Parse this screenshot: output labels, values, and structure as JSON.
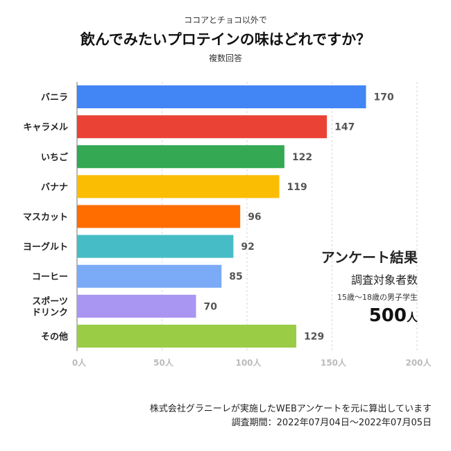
{
  "header": {
    "pre_title": "ココアとチョコ以外で",
    "title": "飲んでみたいプロテインの味はどれですか？",
    "subtitle": "複数回答"
  },
  "chart_data": {
    "type": "bar",
    "orientation": "horizontal",
    "categories": [
      "バニラ",
      "キャラメル",
      "いちご",
      "バナナ",
      "マスカット",
      "ヨーグルト",
      "コーヒー",
      "スポーツドリンク",
      "その他"
    ],
    "category_lines": [
      [
        "バニラ"
      ],
      [
        "キャラメル"
      ],
      [
        "いちご"
      ],
      [
        "バナナ"
      ],
      [
        "マスカット"
      ],
      [
        "ヨーグルト"
      ],
      [
        "コーヒー"
      ],
      [
        "スポーツ",
        "ドリンク"
      ],
      [
        "その他"
      ]
    ],
    "values": [
      170,
      147,
      122,
      119,
      96,
      92,
      85,
      70,
      129
    ],
    "colors": [
      "#4285f4",
      "#ea4335",
      "#34a853",
      "#fbbc04",
      "#ff6d01",
      "#46bdc6",
      "#7baaf7",
      "#a995f2",
      "#9bcc46"
    ],
    "xlim": [
      0,
      200
    ],
    "xticks": [
      0,
      50,
      100,
      150,
      200
    ],
    "xtick_labels": [
      "0人",
      "50人",
      "100人",
      "150人",
      "200人"
    ],
    "grid": "vertical dashed",
    "legend": "none"
  },
  "summary": {
    "heading": "アンケート結果",
    "target_label": "調査対象者数",
    "respondents": "15歳〜18歳の男子学生",
    "count": "500",
    "count_unit": "人"
  },
  "footer": {
    "line1": "株式会社グラニーレが実施したWEBアンケートを元に算出しています",
    "line2": "調査期間：2022年07月04日〜2022年07月05日"
  }
}
